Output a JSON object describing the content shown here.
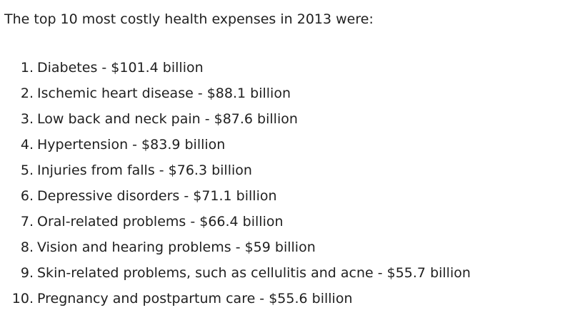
{
  "intro": "The top 10 most costly health expenses in 2013 were:",
  "items": [
    {
      "number": "1.",
      "text": "Diabetes - $101.4 billion"
    },
    {
      "number": "2.",
      "text": "Ischemic heart disease - $88.1 billion"
    },
    {
      "number": "3.",
      "text": "Low back and neck pain - $87.6 billion"
    },
    {
      "number": "4.",
      "text": "Hypertension - $83.9 billion"
    },
    {
      "number": "5.",
      "text": "Injuries from falls - $76.3 billion"
    },
    {
      "number": "6.",
      "text": "Depressive disorders - $71.1 billion"
    },
    {
      "number": "7.",
      "text": "Oral-related problems - $66.4 billion"
    },
    {
      "number": "8.",
      "text": "Vision and hearing problems - $59 billion"
    },
    {
      "number": "9.",
      "text": "Skin-related problems, such as cellulitis and acne - $55.7 billion"
    },
    {
      "number": "10.",
      "text": "Pregnancy and postpartum care - $55.6 billion"
    }
  ]
}
